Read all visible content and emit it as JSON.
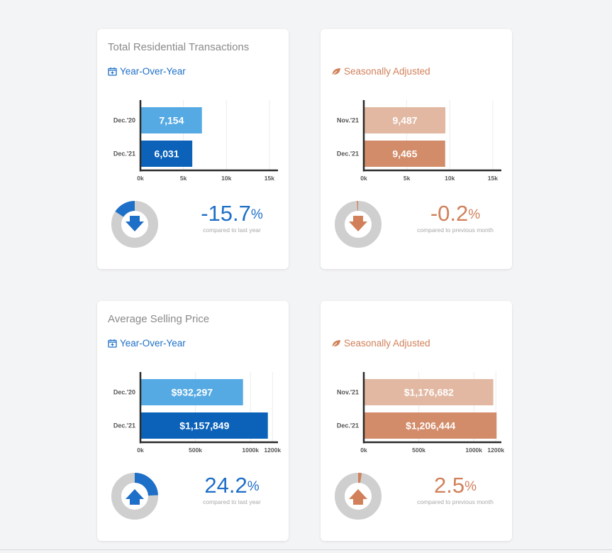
{
  "cards": [
    {
      "title": "Total Residential Transactions",
      "subtitle": "Year-Over-Year",
      "subtitle_icon": "calendar-icon",
      "theme": "blue",
      "change_value": "-15.7",
      "change_unit": "%",
      "change_caption": "compared to last year",
      "direction": "down",
      "arc_fraction": 0.157,
      "chart_data": {
        "type": "bar",
        "orientation": "horizontal",
        "categories": [
          "Dec.'20",
          "Dec.'21"
        ],
        "values": [
          7154,
          6031
        ],
        "value_labels": [
          "7,154",
          "6,031"
        ],
        "xlim": [
          0,
          16000
        ],
        "xticks": [
          0,
          5000,
          10000,
          15000
        ],
        "xtick_labels": [
          "0k",
          "5k",
          "10k",
          "15k"
        ],
        "colors": [
          "#56aae3",
          "#0b62b8"
        ],
        "grid": true
      }
    },
    {
      "title": "",
      "subtitle": "Seasonally Adjusted",
      "subtitle_icon": "leaf-icon",
      "theme": "orange",
      "change_value": "-0.2",
      "change_unit": "%",
      "change_caption": "compared to previous month",
      "direction": "down",
      "arc_fraction": 0.002,
      "chart_data": {
        "type": "bar",
        "orientation": "horizontal",
        "categories": [
          "Nov.'21",
          "Dec.'21"
        ],
        "values": [
          9487,
          9465
        ],
        "value_labels": [
          "9,487",
          "9,465"
        ],
        "xlim": [
          0,
          16000
        ],
        "xticks": [
          0,
          5000,
          10000,
          15000
        ],
        "xtick_labels": [
          "0k",
          "5k",
          "10k",
          "15k"
        ],
        "colors": [
          "#e2b8a2",
          "#d38c6a"
        ],
        "grid": true
      }
    },
    {
      "title": "Average Selling Price",
      "subtitle": "Year-Over-Year",
      "subtitle_icon": "calendar-icon",
      "theme": "blue",
      "change_value": "24.2",
      "change_unit": "%",
      "change_caption": "compared to last year",
      "direction": "up",
      "arc_fraction": 0.242,
      "chart_data": {
        "type": "bar",
        "orientation": "horizontal",
        "categories": [
          "Dec.'20",
          "Dec.'21"
        ],
        "values": [
          932297,
          1157849
        ],
        "value_labels": [
          "$932,297",
          "$1,157,849"
        ],
        "xlim": [
          0,
          1250000
        ],
        "xticks": [
          0,
          500000,
          1000000,
          1200000
        ],
        "xtick_labels": [
          "0k",
          "500k",
          "1000k",
          "1200k"
        ],
        "colors": [
          "#56aae3",
          "#0b62b8"
        ],
        "grid": true
      }
    },
    {
      "title": "",
      "subtitle": "Seasonally Adjusted",
      "subtitle_icon": "leaf-icon",
      "theme": "orange",
      "change_value": "2.5",
      "change_unit": "%",
      "change_caption": "compared to previous month",
      "direction": "up",
      "arc_fraction": 0.025,
      "chart_data": {
        "type": "bar",
        "orientation": "horizontal",
        "categories": [
          "Nov.'21",
          "Dec.'21"
        ],
        "values": [
          1176682,
          1206444
        ],
        "value_labels": [
          "$1,176,682",
          "$1,206,444"
        ],
        "xlim": [
          0,
          1250000
        ],
        "xticks": [
          0,
          500000,
          1000000,
          1200000
        ],
        "xtick_labels": [
          "0k",
          "500k",
          "1000k",
          "1200k"
        ],
        "colors": [
          "#e2b8a2",
          "#d38c6a"
        ],
        "grid": true
      }
    }
  ],
  "colors": {
    "blue_accent": "#1e6fc7",
    "orange_accent": "#d1805a",
    "donut_track": "#cfcfcf"
  }
}
